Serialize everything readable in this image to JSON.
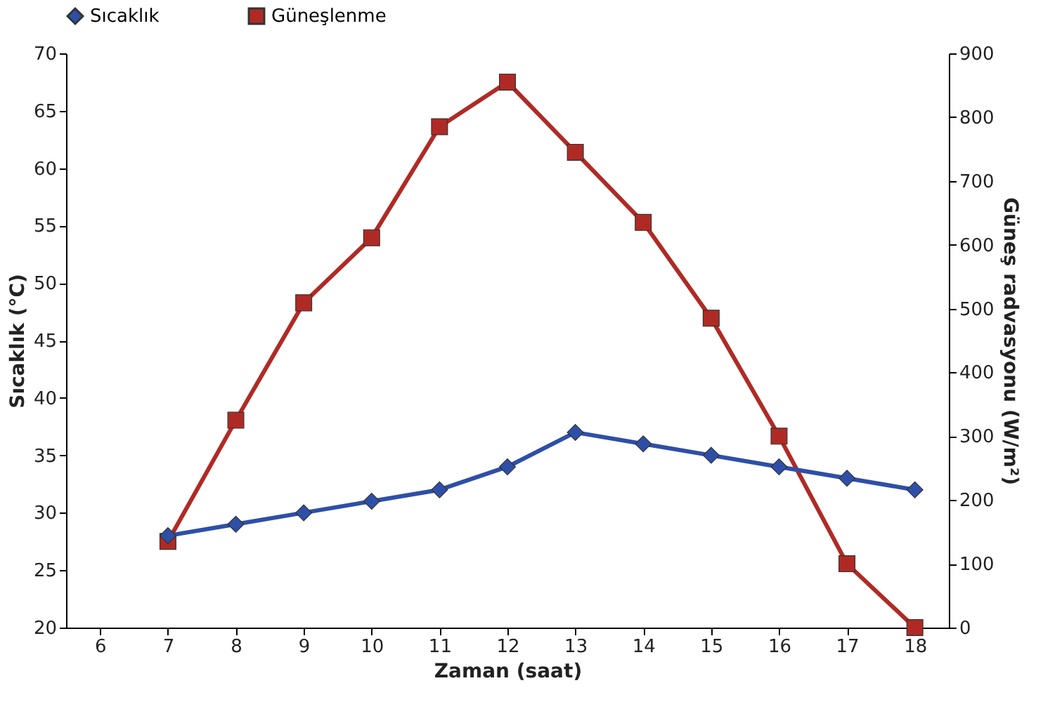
{
  "chart_data": {
    "type": "line",
    "xlabel": "Zaman (saat)",
    "ylabel": "Sıcaklık (°C)",
    "y2label": "Güneş radvasyonu (W/m²)",
    "categories": [
      "6",
      "7",
      "8",
      "9",
      "10",
      "11",
      "12",
      "13",
      "14",
      "15",
      "16",
      "17",
      "18"
    ],
    "series": [
      {
        "name": "Sıcaklık",
        "color": "#2e4fa8",
        "marker": "diamond",
        "values": [
          null,
          28,
          29,
          30,
          31,
          32,
          34,
          37,
          36,
          35,
          34,
          33,
          32
        ]
      },
      {
        "name": "Güneşlenme",
        "color": "#b02a25",
        "marker": "square",
        "axis": "y2",
        "values": [
          null,
          135,
          325,
          509,
          611,
          785,
          855,
          745,
          635,
          485,
          300,
          100,
          0
        ]
      }
    ],
    "ylim": [
      20,
      70
    ],
    "yticks": [
      20,
      25,
      30,
      35,
      40,
      45,
      50,
      55,
      60,
      65,
      70
    ],
    "y2lim": [
      0,
      900
    ],
    "y2ticks": [
      0,
      100,
      200,
      300,
      400,
      500,
      600,
      700,
      800,
      900
    ],
    "grid": false,
    "legend": "top"
  }
}
